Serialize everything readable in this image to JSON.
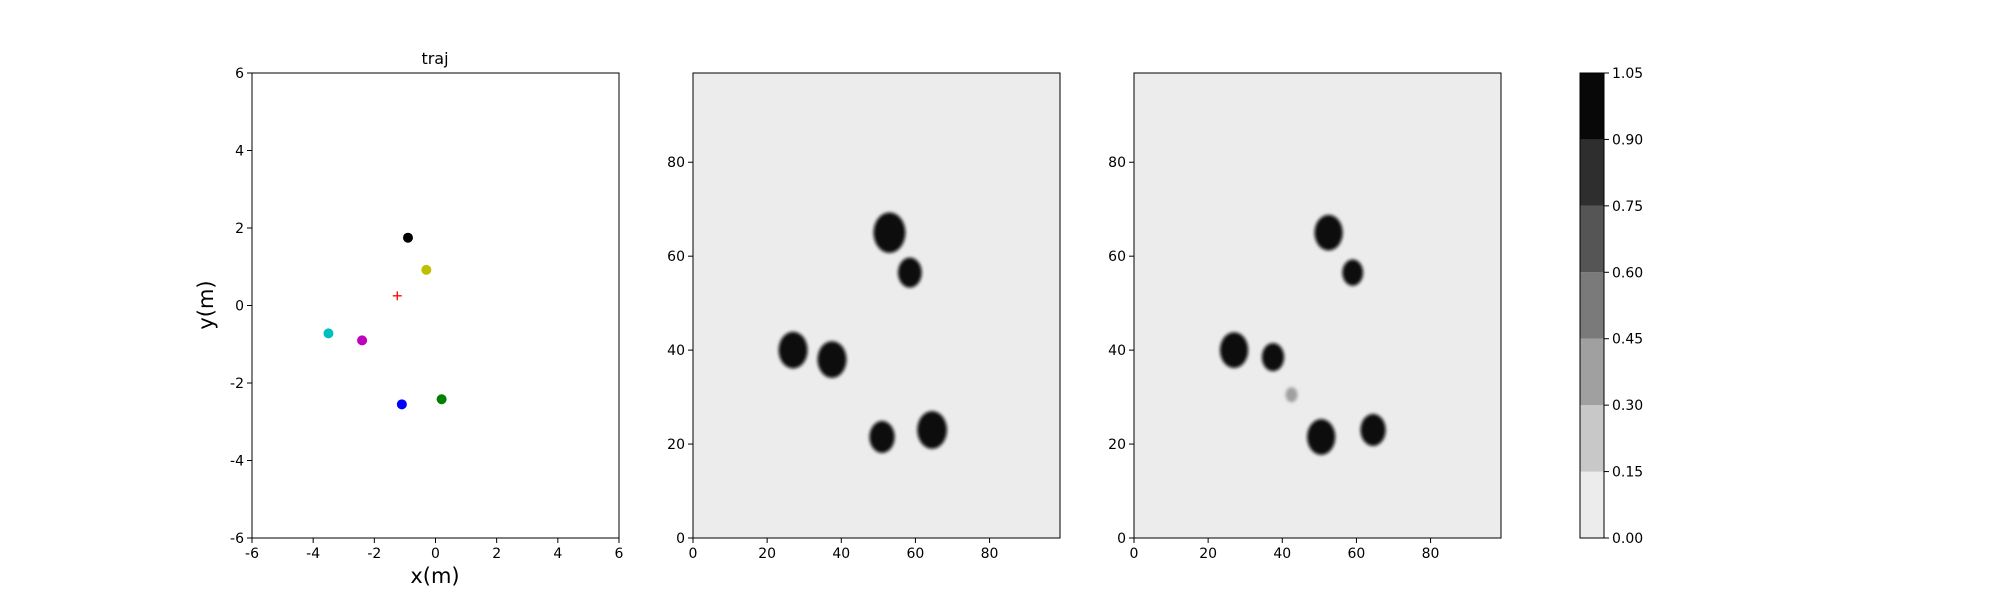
{
  "chart_data": [
    {
      "type": "scatter",
      "title": "traj",
      "xlabel": "x(m)",
      "ylabel": "y(m)",
      "xlim": [
        -6,
        6
      ],
      "ylim": [
        -6,
        6
      ],
      "xticks": [
        -6,
        -4,
        -2,
        0,
        2,
        4,
        6
      ],
      "yticks": [
        -6,
        -4,
        -2,
        0,
        2,
        4,
        6
      ],
      "grid": false,
      "points": [
        {
          "x": -0.9,
          "y": 1.75,
          "color": "#000000",
          "marker": "circle"
        },
        {
          "x": -0.3,
          "y": 0.92,
          "color": "#bfbf00",
          "marker": "circle"
        },
        {
          "x": -3.5,
          "y": -0.72,
          "color": "#00bfbf",
          "marker": "circle"
        },
        {
          "x": -2.4,
          "y": -0.9,
          "color": "#bf00bf",
          "marker": "circle"
        },
        {
          "x": -1.1,
          "y": -2.55,
          "color": "#0000ff",
          "marker": "circle"
        },
        {
          "x": 0.2,
          "y": -2.42,
          "color": "#008000",
          "marker": "circle"
        }
      ],
      "marker_plus": {
        "x": -1.25,
        "y": 0.25,
        "color": "#ff0000"
      }
    },
    {
      "type": "heatmap",
      "xlim": [
        0,
        99
      ],
      "ylim": [
        0,
        99
      ],
      "xticks": [
        0,
        20,
        40,
        60,
        80
      ],
      "yticks": [
        0,
        20,
        40,
        60,
        80
      ],
      "background_value": 0.05,
      "blobs": [
        {
          "cx": 53,
          "cy": 65,
          "r": 4.3,
          "value": 1.0
        },
        {
          "cx": 58.5,
          "cy": 56.5,
          "r": 3.2,
          "value": 1.0
        },
        {
          "cx": 27,
          "cy": 40,
          "r": 3.9,
          "value": 1.0
        },
        {
          "cx": 37.5,
          "cy": 38,
          "r": 3.9,
          "value": 1.0
        },
        {
          "cx": 51,
          "cy": 21.5,
          "r": 3.4,
          "value": 1.0
        },
        {
          "cx": 64.5,
          "cy": 23,
          "r": 4.0,
          "value": 1.0
        }
      ]
    },
    {
      "type": "heatmap",
      "xlim": [
        0,
        99
      ],
      "ylim": [
        0,
        99
      ],
      "xticks": [
        0,
        20,
        40,
        60,
        80
      ],
      "yticks": [
        0,
        20,
        40,
        60,
        80
      ],
      "background_value": 0.05,
      "blobs": [
        {
          "cx": 52.5,
          "cy": 65,
          "r": 3.8,
          "value": 1.0
        },
        {
          "cx": 59,
          "cy": 56.5,
          "r": 2.8,
          "value": 1.0
        },
        {
          "cx": 27,
          "cy": 40,
          "r": 3.8,
          "value": 1.0
        },
        {
          "cx": 37.5,
          "cy": 38.5,
          "r": 3.0,
          "value": 1.0
        },
        {
          "cx": 50.5,
          "cy": 21.5,
          "r": 3.8,
          "value": 1.0
        },
        {
          "cx": 64.5,
          "cy": 23,
          "r": 3.4,
          "value": 1.0
        },
        {
          "cx": 42.5,
          "cy": 30.5,
          "r": 1.6,
          "value": 0.3
        }
      ]
    }
  ],
  "colorbar": {
    "levels": [
      0.0,
      0.15,
      0.3,
      0.45,
      0.6,
      0.75,
      0.9,
      1.05
    ],
    "tick_labels": [
      "0.00",
      "0.15",
      "0.30",
      "0.45",
      "0.60",
      "0.75",
      "0.90",
      "1.05"
    ],
    "colors": [
      "#ececec",
      "#c8c8c8",
      "#a0a0a0",
      "#7a7a7a",
      "#555555",
      "#2e2e2e",
      "#080808"
    ]
  }
}
